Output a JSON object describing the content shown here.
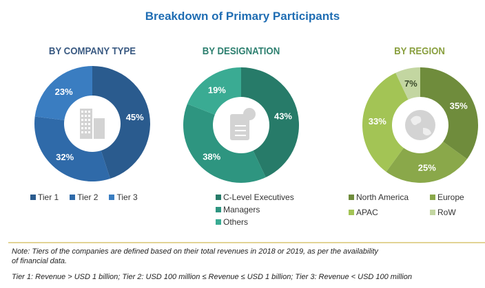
{
  "title": "Breakdown of Primary Participants",
  "chart_data": [
    {
      "type": "pie",
      "donut": true,
      "title": "BY COMPANY TYPE",
      "center_icon": "building-icon",
      "categories": [
        "Tier 1",
        "Tier 2",
        "Tier 3"
      ],
      "values": [
        45,
        32,
        23
      ],
      "labels": [
        "45%",
        "32%",
        "23%"
      ],
      "colors": [
        "#2a5b8e",
        "#2f6aa9",
        "#3a7dc1"
      ],
      "title_color": "#3a5a82"
    },
    {
      "type": "pie",
      "donut": true,
      "title": "BY DESIGNATION",
      "center_icon": "document-icon",
      "categories": [
        "C-Level Executives",
        "Managers",
        "Others"
      ],
      "values": [
        43,
        38,
        19
      ],
      "labels": [
        "43%",
        "38%",
        "19%"
      ],
      "colors": [
        "#277b69",
        "#2e9580",
        "#3aab93"
      ],
      "title_color": "#2e8070"
    },
    {
      "type": "pie",
      "donut": true,
      "title": "BY REGION",
      "center_icon": "globe-icon",
      "categories": [
        "North America",
        "Europe",
        "APAC",
        "RoW"
      ],
      "values": [
        35,
        25,
        33,
        7
      ],
      "labels": [
        "35%",
        "25%",
        "33%",
        "7%"
      ],
      "colors": [
        "#6f8c3c",
        "#8aa84a",
        "#a3c455",
        "#c3d6a1"
      ],
      "title_color": "#8aa040"
    }
  ],
  "notes": {
    "line1": "Note: Tiers of the companies are defined based on their total revenues in 2018 or 2019, as per the availability",
    "line2": "of financial data.",
    "line3": "Tier 1: Revenue > USD 1 billion; Tier 2: USD 100 million ≤ Revenue ≤ USD 1 billion; Tier 3: Revenue < USD 100 million"
  }
}
